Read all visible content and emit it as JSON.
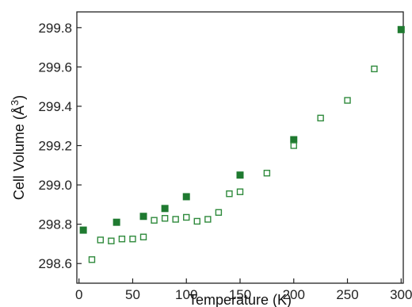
{
  "chart_data": {
    "type": "scatter",
    "title": "",
    "xlabel": "Temperature (K)",
    "ylabel_text": "Cell Volume (Å",
    "ylabel_sup": "3",
    "ylabel_close": ")",
    "xlim": [
      -2,
      302
    ],
    "ylim": [
      298.5,
      299.88
    ],
    "xticks": [
      0,
      50,
      100,
      150,
      200,
      250,
      300
    ],
    "yticks": [
      298.6,
      298.8,
      299.0,
      299.2,
      299.4,
      299.6,
      299.8
    ],
    "grid": false,
    "legend": "none",
    "series": [
      {
        "marker": "filled-square",
        "color": "#1f7a30",
        "points": [
          [
            4,
            298.77
          ],
          [
            35,
            298.81
          ],
          [
            60,
            298.84
          ],
          [
            80,
            298.88
          ],
          [
            100,
            298.94
          ],
          [
            150,
            299.05
          ],
          [
            200,
            299.23
          ],
          [
            300,
            299.79
          ]
        ]
      },
      {
        "marker": "open-square",
        "color": "#2f8a3c",
        "points": [
          [
            12,
            298.62
          ],
          [
            20,
            298.72
          ],
          [
            30,
            298.715
          ],
          [
            40,
            298.725
          ],
          [
            50,
            298.725
          ],
          [
            60,
            298.735
          ],
          [
            70,
            298.82
          ],
          [
            80,
            298.83
          ],
          [
            90,
            298.825
          ],
          [
            100,
            298.835
          ],
          [
            110,
            298.815
          ],
          [
            120,
            298.825
          ],
          [
            130,
            298.86
          ],
          [
            140,
            298.955
          ],
          [
            150,
            298.965
          ],
          [
            175,
            299.06
          ],
          [
            200,
            299.2
          ],
          [
            225,
            299.34
          ],
          [
            250,
            299.43
          ],
          [
            275,
            299.59
          ]
        ]
      }
    ]
  }
}
